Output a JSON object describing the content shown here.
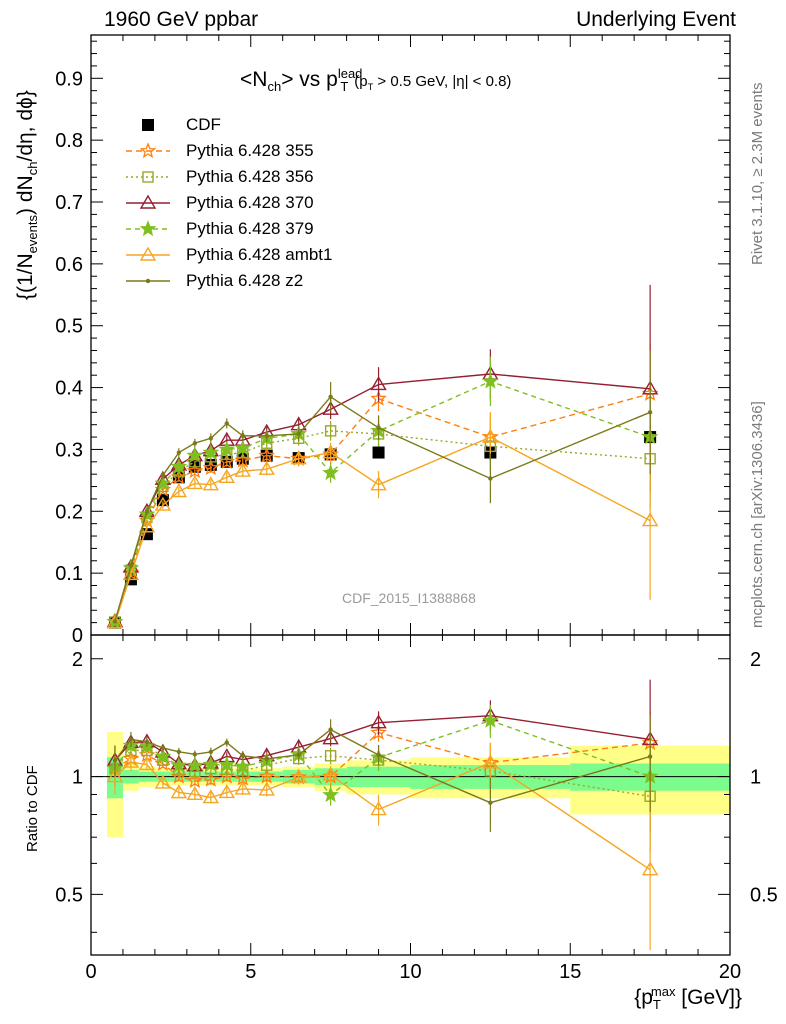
{
  "header": {
    "left": "1960 GeV ppbar",
    "right": "Underlying Event",
    "rivet_version": "Rivet 3.1.10, ≥ 2.3M events",
    "source": "mcplots.cern.ch [arXiv:1306.3436]"
  },
  "plot_title": {
    "observable": "<N",
    "observable_sub": "ch",
    "vs": "> vs p",
    "lead_sup": "lead",
    "lead_sub": "T",
    "cut": "(p",
    "cut_sub": "T",
    "cut_rest": " > 0.5 GeV, |η| < 0.8)"
  },
  "y_label": {
    "a": "{(1/N",
    "a_sub": "events",
    "b": ") dN",
    "b_sub": "ch",
    "c": "/dη, dϕ}"
  },
  "x_label": {
    "a": "{p",
    "a_sub": "T",
    "a_sup": "max",
    "b": " [GeV]}"
  },
  "ratio_label": "Ratio to CDF",
  "watermark": "CDF_2015_I1388868",
  "colors": {
    "cdf": "#000000",
    "p355": "#ff7f0e",
    "p356": "#9aa825",
    "p370": "#951e32",
    "p379": "#7fbf1f",
    "ambt1": "#f5a623",
    "z2": "#7a7a1a",
    "band_stat": "#7cfc8c",
    "band_syst": "#ffff88"
  },
  "chart_data": {
    "type": "scatter",
    "xlim": [
      0,
      20
    ],
    "ylim": [
      0,
      0.97
    ],
    "ratio_ylim": [
      0.35,
      2.3
    ],
    "x_ticks": [
      0,
      5,
      10,
      15,
      20
    ],
    "y_ticks": [
      0,
      0.1,
      0.2,
      0.3,
      0.4,
      0.5,
      0.6,
      0.7,
      0.8,
      0.9
    ],
    "ratio_ticks": [
      0.5,
      1,
      2
    ],
    "x": [
      0.75,
      1.25,
      1.75,
      2.25,
      2.75,
      3.25,
      3.75,
      4.25,
      4.75,
      5.5,
      6.5,
      7.5,
      9.0,
      12.5,
      17.5
    ],
    "bin_edges": [
      0.5,
      1.0,
      1.5,
      2.0,
      2.5,
      3.0,
      3.5,
      4.0,
      4.5,
      5.0,
      6.0,
      7.0,
      8.0,
      10.0,
      15.0,
      20.0
    ],
    "series": [
      {
        "name": "CDF",
        "key": "cdf",
        "marker": "square",
        "dash": "none",
        "values": [
          0.02,
          0.09,
          0.163,
          0.218,
          0.255,
          0.272,
          0.275,
          0.28,
          0.285,
          0.29,
          0.286,
          0.292,
          0.295,
          0.295,
          0.32
        ],
        "ratio_stat": [
          0.12,
          0.04,
          0.03,
          0.03,
          0.03,
          0.03,
          0.03,
          0.03,
          0.03,
          0.03,
          0.04,
          0.05,
          0.06,
          0.07,
          0.08
        ],
        "ratio_syst": [
          0.3,
          0.08,
          0.06,
          0.05,
          0.05,
          0.05,
          0.05,
          0.05,
          0.05,
          0.05,
          0.06,
          0.08,
          0.1,
          0.12,
          0.2
        ]
      },
      {
        "name": "Pythia 6.428 355",
        "key": "p355",
        "marker": "star",
        "dash": "6,4",
        "values": [
          0.021,
          0.1,
          0.185,
          0.235,
          0.255,
          0.265,
          0.27,
          0.28,
          0.282,
          0.29,
          0.285,
          0.292,
          0.382,
          0.32,
          0.39
        ],
        "err": [
          0.002,
          0.005,
          0.006,
          0.006,
          0.007,
          0.007,
          0.008,
          0.008,
          0.009,
          0.01,
          0.012,
          0.016,
          0.02,
          0.04,
          0.08
        ]
      },
      {
        "name": "Pythia 6.428 356",
        "key": "p356",
        "marker": "open-square",
        "dash": "2,3",
        "values": [
          0.021,
          0.105,
          0.19,
          0.24,
          0.265,
          0.28,
          0.288,
          0.292,
          0.295,
          0.31,
          0.318,
          0.33,
          0.325,
          0.305,
          0.285
        ],
        "err": [
          0.002,
          0.005,
          0.006,
          0.006,
          0.007,
          0.007,
          0.008,
          0.008,
          0.009,
          0.01,
          0.012,
          0.016,
          0.02,
          0.04,
          0.08
        ]
      },
      {
        "name": "Pythia 6.428 370",
        "key": "p370",
        "marker": "open-triangle",
        "dash": "none",
        "values": [
          0.022,
          0.11,
          0.2,
          0.252,
          0.275,
          0.29,
          0.298,
          0.315,
          0.315,
          0.328,
          0.34,
          0.365,
          0.405,
          0.422,
          0.398
        ],
        "err": [
          0.002,
          0.005,
          0.006,
          0.006,
          0.007,
          0.007,
          0.008,
          0.008,
          0.009,
          0.01,
          0.012,
          0.016,
          0.028,
          0.04,
          0.168
        ]
      },
      {
        "name": "Pythia 6.428 379",
        "key": "p379",
        "marker": "star-solid",
        "dash": "5,4",
        "values": [
          0.021,
          0.108,
          0.195,
          0.245,
          0.272,
          0.29,
          0.295,
          0.3,
          0.302,
          0.318,
          0.325,
          0.262,
          0.33,
          0.41,
          0.32
        ],
        "err": [
          0.002,
          0.005,
          0.006,
          0.006,
          0.007,
          0.007,
          0.008,
          0.008,
          0.009,
          0.01,
          0.012,
          0.016,
          0.025,
          0.04,
          0.08
        ]
      },
      {
        "name": "Pythia 6.428 ambt1",
        "key": "ambt1",
        "marker": "open-triangle",
        "dash": "none",
        "values": [
          0.02,
          0.098,
          0.175,
          0.21,
          0.232,
          0.245,
          0.243,
          0.255,
          0.265,
          0.268,
          0.285,
          0.295,
          0.243,
          0.32,
          0.185
        ],
        "err": [
          0.002,
          0.005,
          0.006,
          0.006,
          0.007,
          0.007,
          0.008,
          0.008,
          0.009,
          0.01,
          0.012,
          0.016,
          0.022,
          0.04,
          0.128
        ]
      },
      {
        "name": "Pythia 6.428 z2",
        "key": "z2",
        "marker": "dot",
        "dash": "none",
        "values": [
          0.022,
          0.112,
          0.2,
          0.258,
          0.295,
          0.31,
          0.318,
          0.342,
          0.322,
          0.322,
          0.325,
          0.385,
          0.335,
          0.253,
          0.36
        ],
        "err": [
          0.002,
          0.005,
          0.006,
          0.006,
          0.007,
          0.007,
          0.008,
          0.008,
          0.009,
          0.01,
          0.012,
          0.024,
          0.02,
          0.04,
          0.1
        ]
      }
    ],
    "legend_position": "top-left",
    "grid": false
  }
}
